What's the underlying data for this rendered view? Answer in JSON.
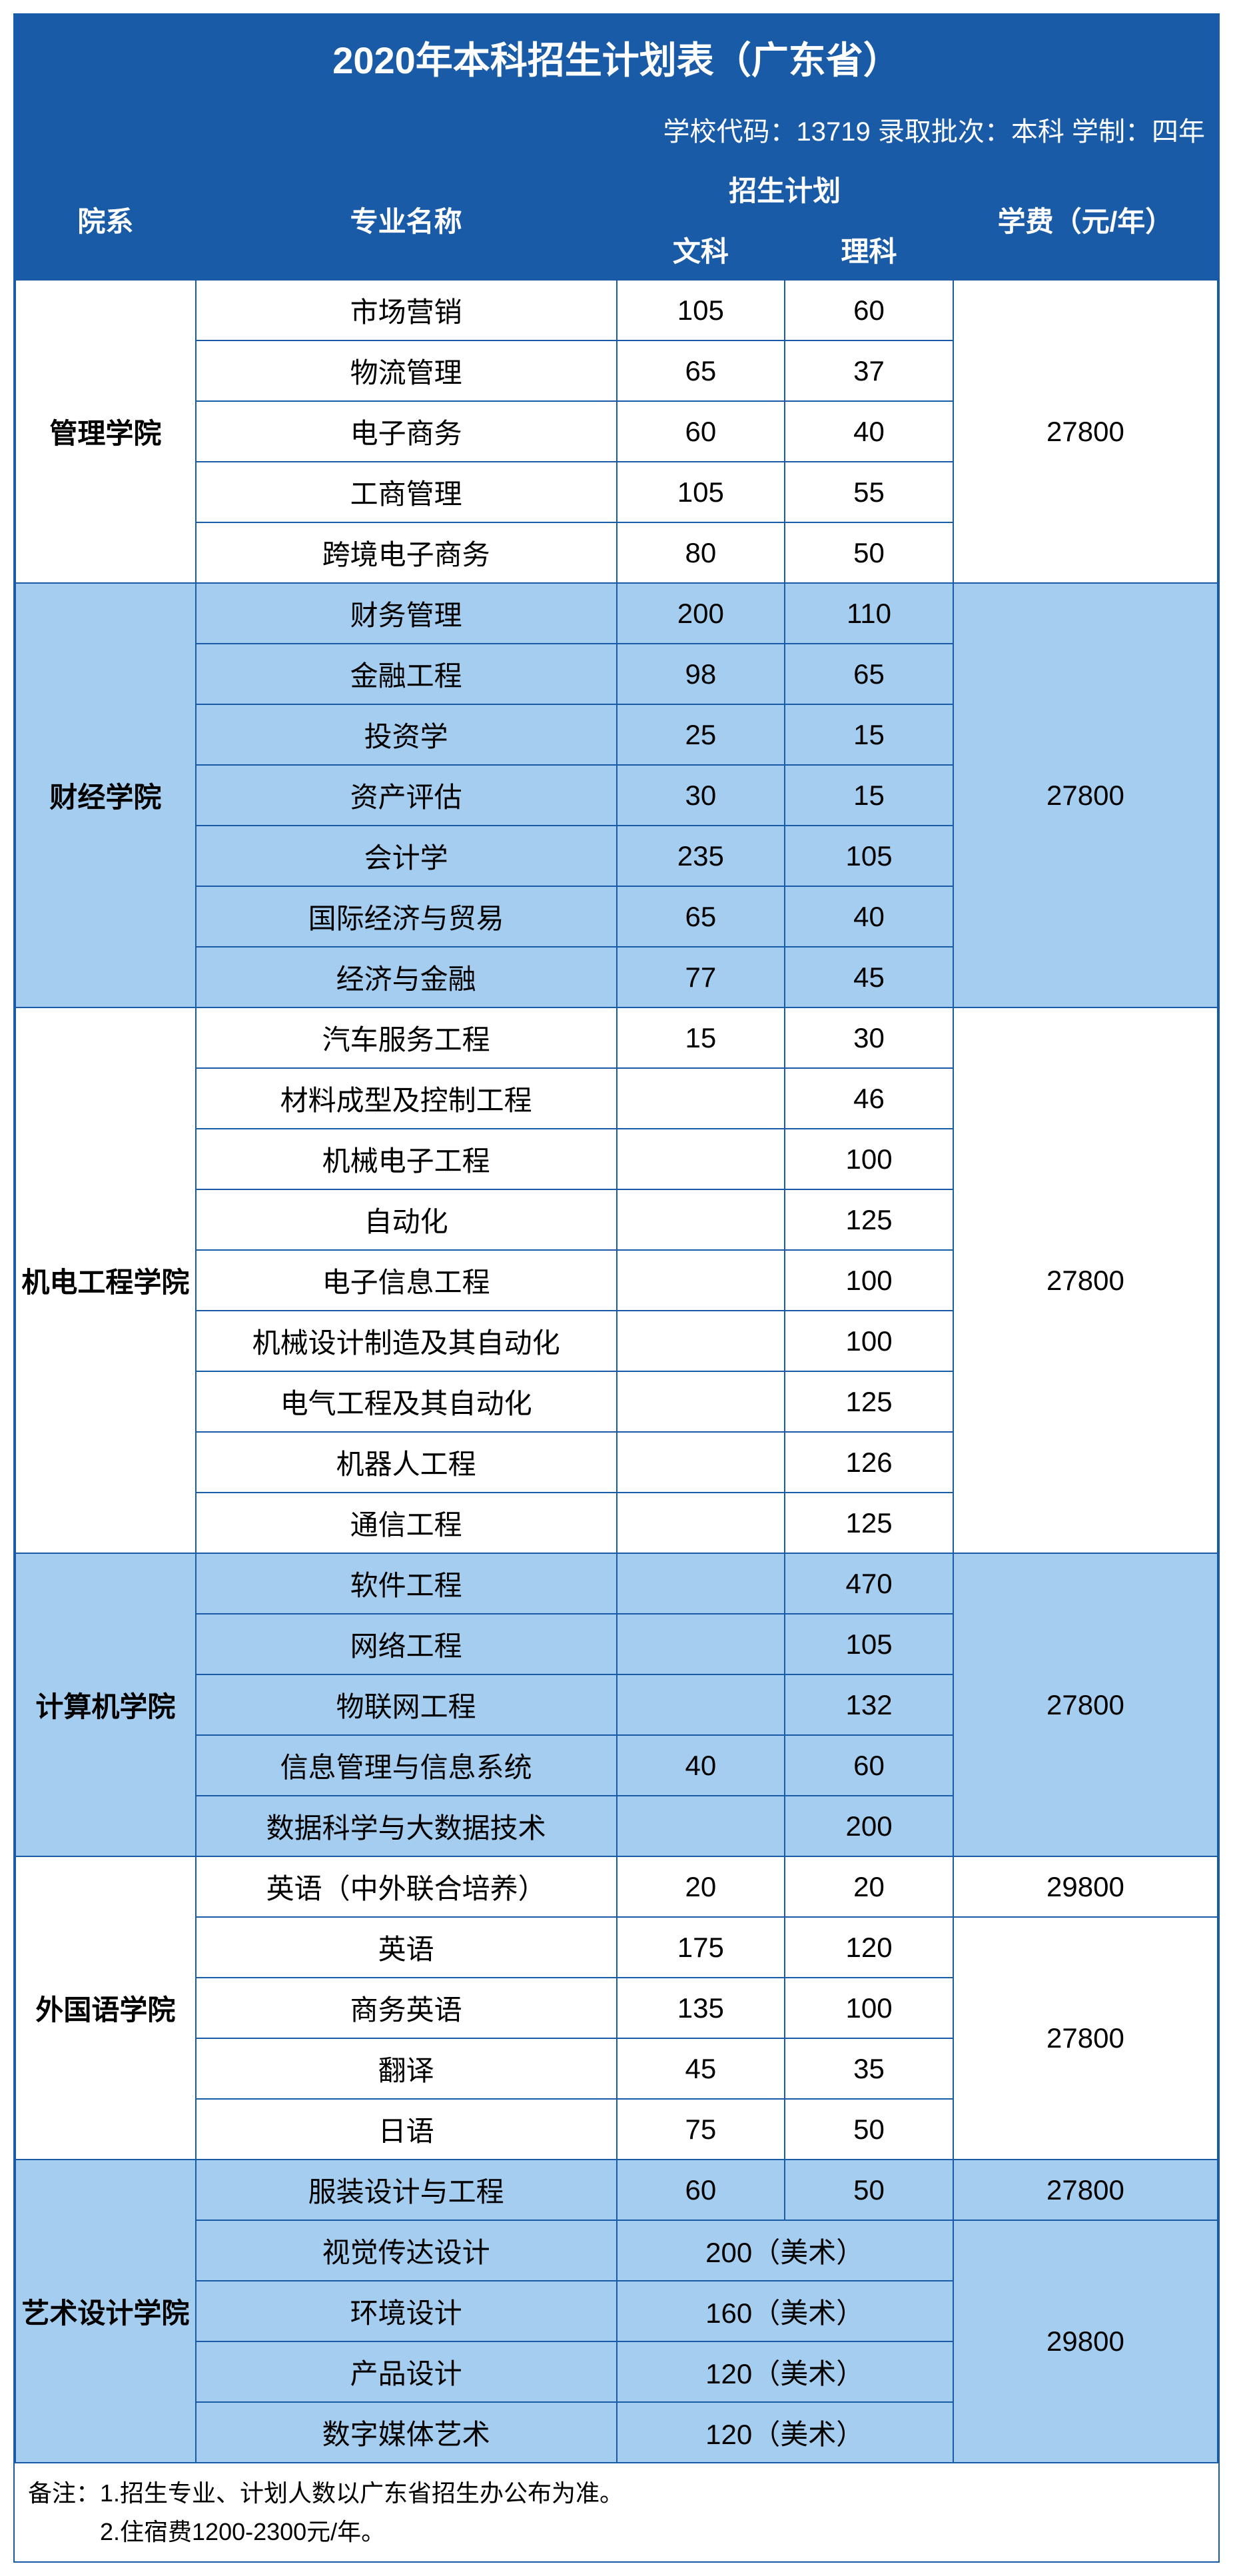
{
  "title": "2020年本科招生计划表（广东省）",
  "info": "学校代码：13719  录取批次：本科  学制：四年",
  "headers": {
    "dept": "院系",
    "major": "专业名称",
    "plan": "招生计划",
    "wen": "文科",
    "li": "理科",
    "fee": "学费（元/年）"
  },
  "groups": [
    {
      "dept": "管理学院",
      "bg": "bg-white",
      "fee_groups": [
        {
          "fee": "27800",
          "count": 5
        }
      ],
      "rows": [
        {
          "major": "市场营销",
          "wen": "105",
          "li": "60"
        },
        {
          "major": "物流管理",
          "wen": "65",
          "li": "37"
        },
        {
          "major": "电子商务",
          "wen": "60",
          "li": "40"
        },
        {
          "major": "工商管理",
          "wen": "105",
          "li": "55"
        },
        {
          "major": "跨境电子商务",
          "wen": "80",
          "li": "50"
        }
      ]
    },
    {
      "dept": "财经学院",
      "bg": "bg-blue",
      "fee_groups": [
        {
          "fee": "27800",
          "count": 7
        }
      ],
      "rows": [
        {
          "major": "财务管理",
          "wen": "200",
          "li": "110"
        },
        {
          "major": "金融工程",
          "wen": "98",
          "li": "65"
        },
        {
          "major": "投资学",
          "wen": "25",
          "li": "15"
        },
        {
          "major": "资产评估",
          "wen": "30",
          "li": "15"
        },
        {
          "major": "会计学",
          "wen": "235",
          "li": "105"
        },
        {
          "major": "国际经济与贸易",
          "wen": "65",
          "li": "40"
        },
        {
          "major": "经济与金融",
          "wen": "77",
          "li": "45"
        }
      ]
    },
    {
      "dept": "机电工程学院",
      "bg": "bg-white",
      "fee_groups": [
        {
          "fee": "27800",
          "count": 9
        }
      ],
      "rows": [
        {
          "major": "汽车服务工程",
          "wen": "15",
          "li": "30"
        },
        {
          "major": "材料成型及控制工程",
          "wen": "",
          "li": "46"
        },
        {
          "major": "机械电子工程",
          "wen": "",
          "li": "100"
        },
        {
          "major": "自动化",
          "wen": "",
          "li": "125"
        },
        {
          "major": "电子信息工程",
          "wen": "",
          "li": "100"
        },
        {
          "major": "机械设计制造及其自动化",
          "wen": "",
          "li": "100"
        },
        {
          "major": "电气工程及其自动化",
          "wen": "",
          "li": "125"
        },
        {
          "major": "机器人工程",
          "wen": "",
          "li": "126"
        },
        {
          "major": "通信工程",
          "wen": "",
          "li": "125"
        }
      ]
    },
    {
      "dept": "计算机学院",
      "bg": "bg-blue",
      "fee_groups": [
        {
          "fee": "27800",
          "count": 5
        }
      ],
      "rows": [
        {
          "major": "软件工程",
          "wen": "",
          "li": "470"
        },
        {
          "major": "网络工程",
          "wen": "",
          "li": "105"
        },
        {
          "major": "物联网工程",
          "wen": "",
          "li": "132"
        },
        {
          "major": "信息管理与信息系统",
          "wen": "40",
          "li": "60"
        },
        {
          "major": "数据科学与大数据技术",
          "wen": "",
          "li": "200"
        }
      ]
    },
    {
      "dept": "外国语学院",
      "bg": "bg-white",
      "fee_groups": [
        {
          "fee": "29800",
          "count": 1
        },
        {
          "fee": "27800",
          "count": 4
        }
      ],
      "rows": [
        {
          "major": "英语（中外联合培养）",
          "wen": "20",
          "li": "20"
        },
        {
          "major": "英语",
          "wen": "175",
          "li": "120"
        },
        {
          "major": "商务英语",
          "wen": "135",
          "li": "100"
        },
        {
          "major": "翻译",
          "wen": "45",
          "li": "35"
        },
        {
          "major": "日语",
          "wen": "75",
          "li": "50"
        }
      ]
    },
    {
      "dept": "艺术设计学院",
      "bg": "bg-blue",
      "fee_groups": [
        {
          "fee": "27800",
          "count": 1
        },
        {
          "fee": "29800",
          "count": 4
        }
      ],
      "rows": [
        {
          "major": "服装设计与工程",
          "wen": "60",
          "li": "50"
        },
        {
          "major": "视觉传达设计",
          "merged": "200（美术）"
        },
        {
          "major": "环境设计",
          "merged": "160（美术）"
        },
        {
          "major": "产品设计",
          "merged": "120（美术）"
        },
        {
          "major": "数字媒体艺术",
          "merged": "120（美术）"
        }
      ]
    }
  ],
  "footer1": "备注：1.招生专业、计划人数以广东省招生办公布为准。",
  "footer2": "　　　2.住宿费1200-2300元/年。"
}
